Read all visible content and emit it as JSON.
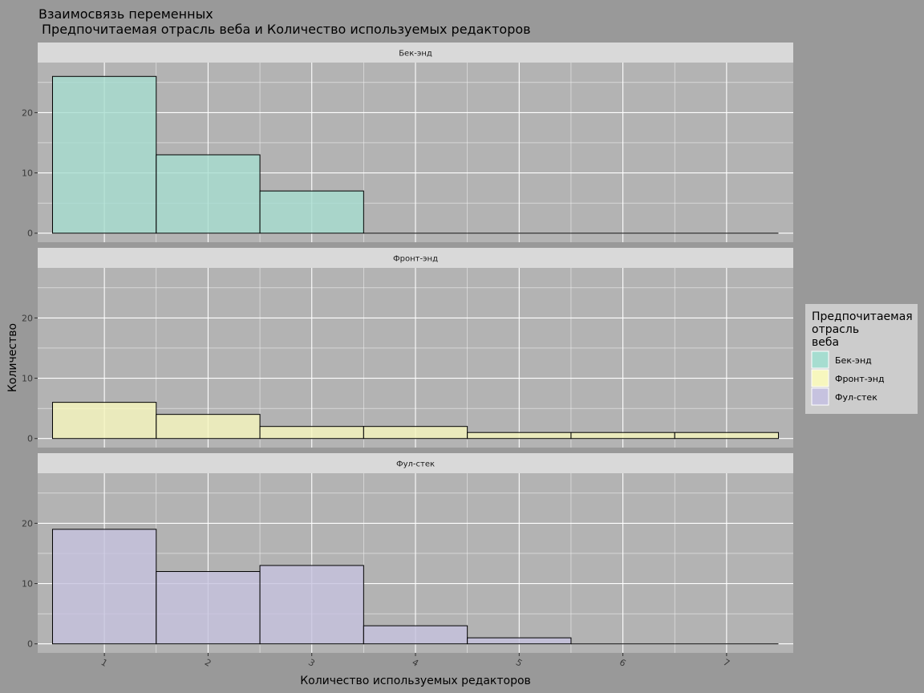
{
  "chart_data": {
    "type": "bar",
    "title": "Взаимосвязь переменных",
    "subtitle": "Предпочитаемая отрасль веба и Количество используемых редакторов",
    "xlabel": "Количество используемых редакторов",
    "ylabel": "Количество",
    "x_ticks": [
      "1",
      "2",
      "3",
      "4",
      "5",
      "6",
      "7"
    ],
    "xlim": [
      0.5,
      7.5
    ],
    "ylim": [
      0,
      27
    ],
    "y_ticks": [
      0,
      10,
      20
    ],
    "grid": true,
    "legend": {
      "title": "Предпочитаемая отрасль веба",
      "title_lines": [
        "Предпочитаемая",
        "отрасль",
        "веба"
      ],
      "placement": "right"
    },
    "series": [
      {
        "name": "Бек-энд",
        "color": "#A6DDD0",
        "x": [
          1,
          2,
          3,
          4,
          5,
          6,
          7
        ],
        "values": [
          26,
          13,
          7,
          0,
          0,
          0,
          0
        ]
      },
      {
        "name": "Фронт-энд",
        "color": "#F7F7BE",
        "x": [
          1,
          2,
          3,
          4,
          5,
          6,
          7
        ],
        "values": [
          6,
          4,
          2,
          2,
          1,
          1,
          1
        ]
      },
      {
        "name": "Фул-стек",
        "color": "#C6C2DF",
        "x": [
          1,
          2,
          3,
          4,
          5,
          6,
          7
        ],
        "values": [
          19,
          12,
          13,
          3,
          1,
          0,
          0
        ]
      }
    ]
  }
}
